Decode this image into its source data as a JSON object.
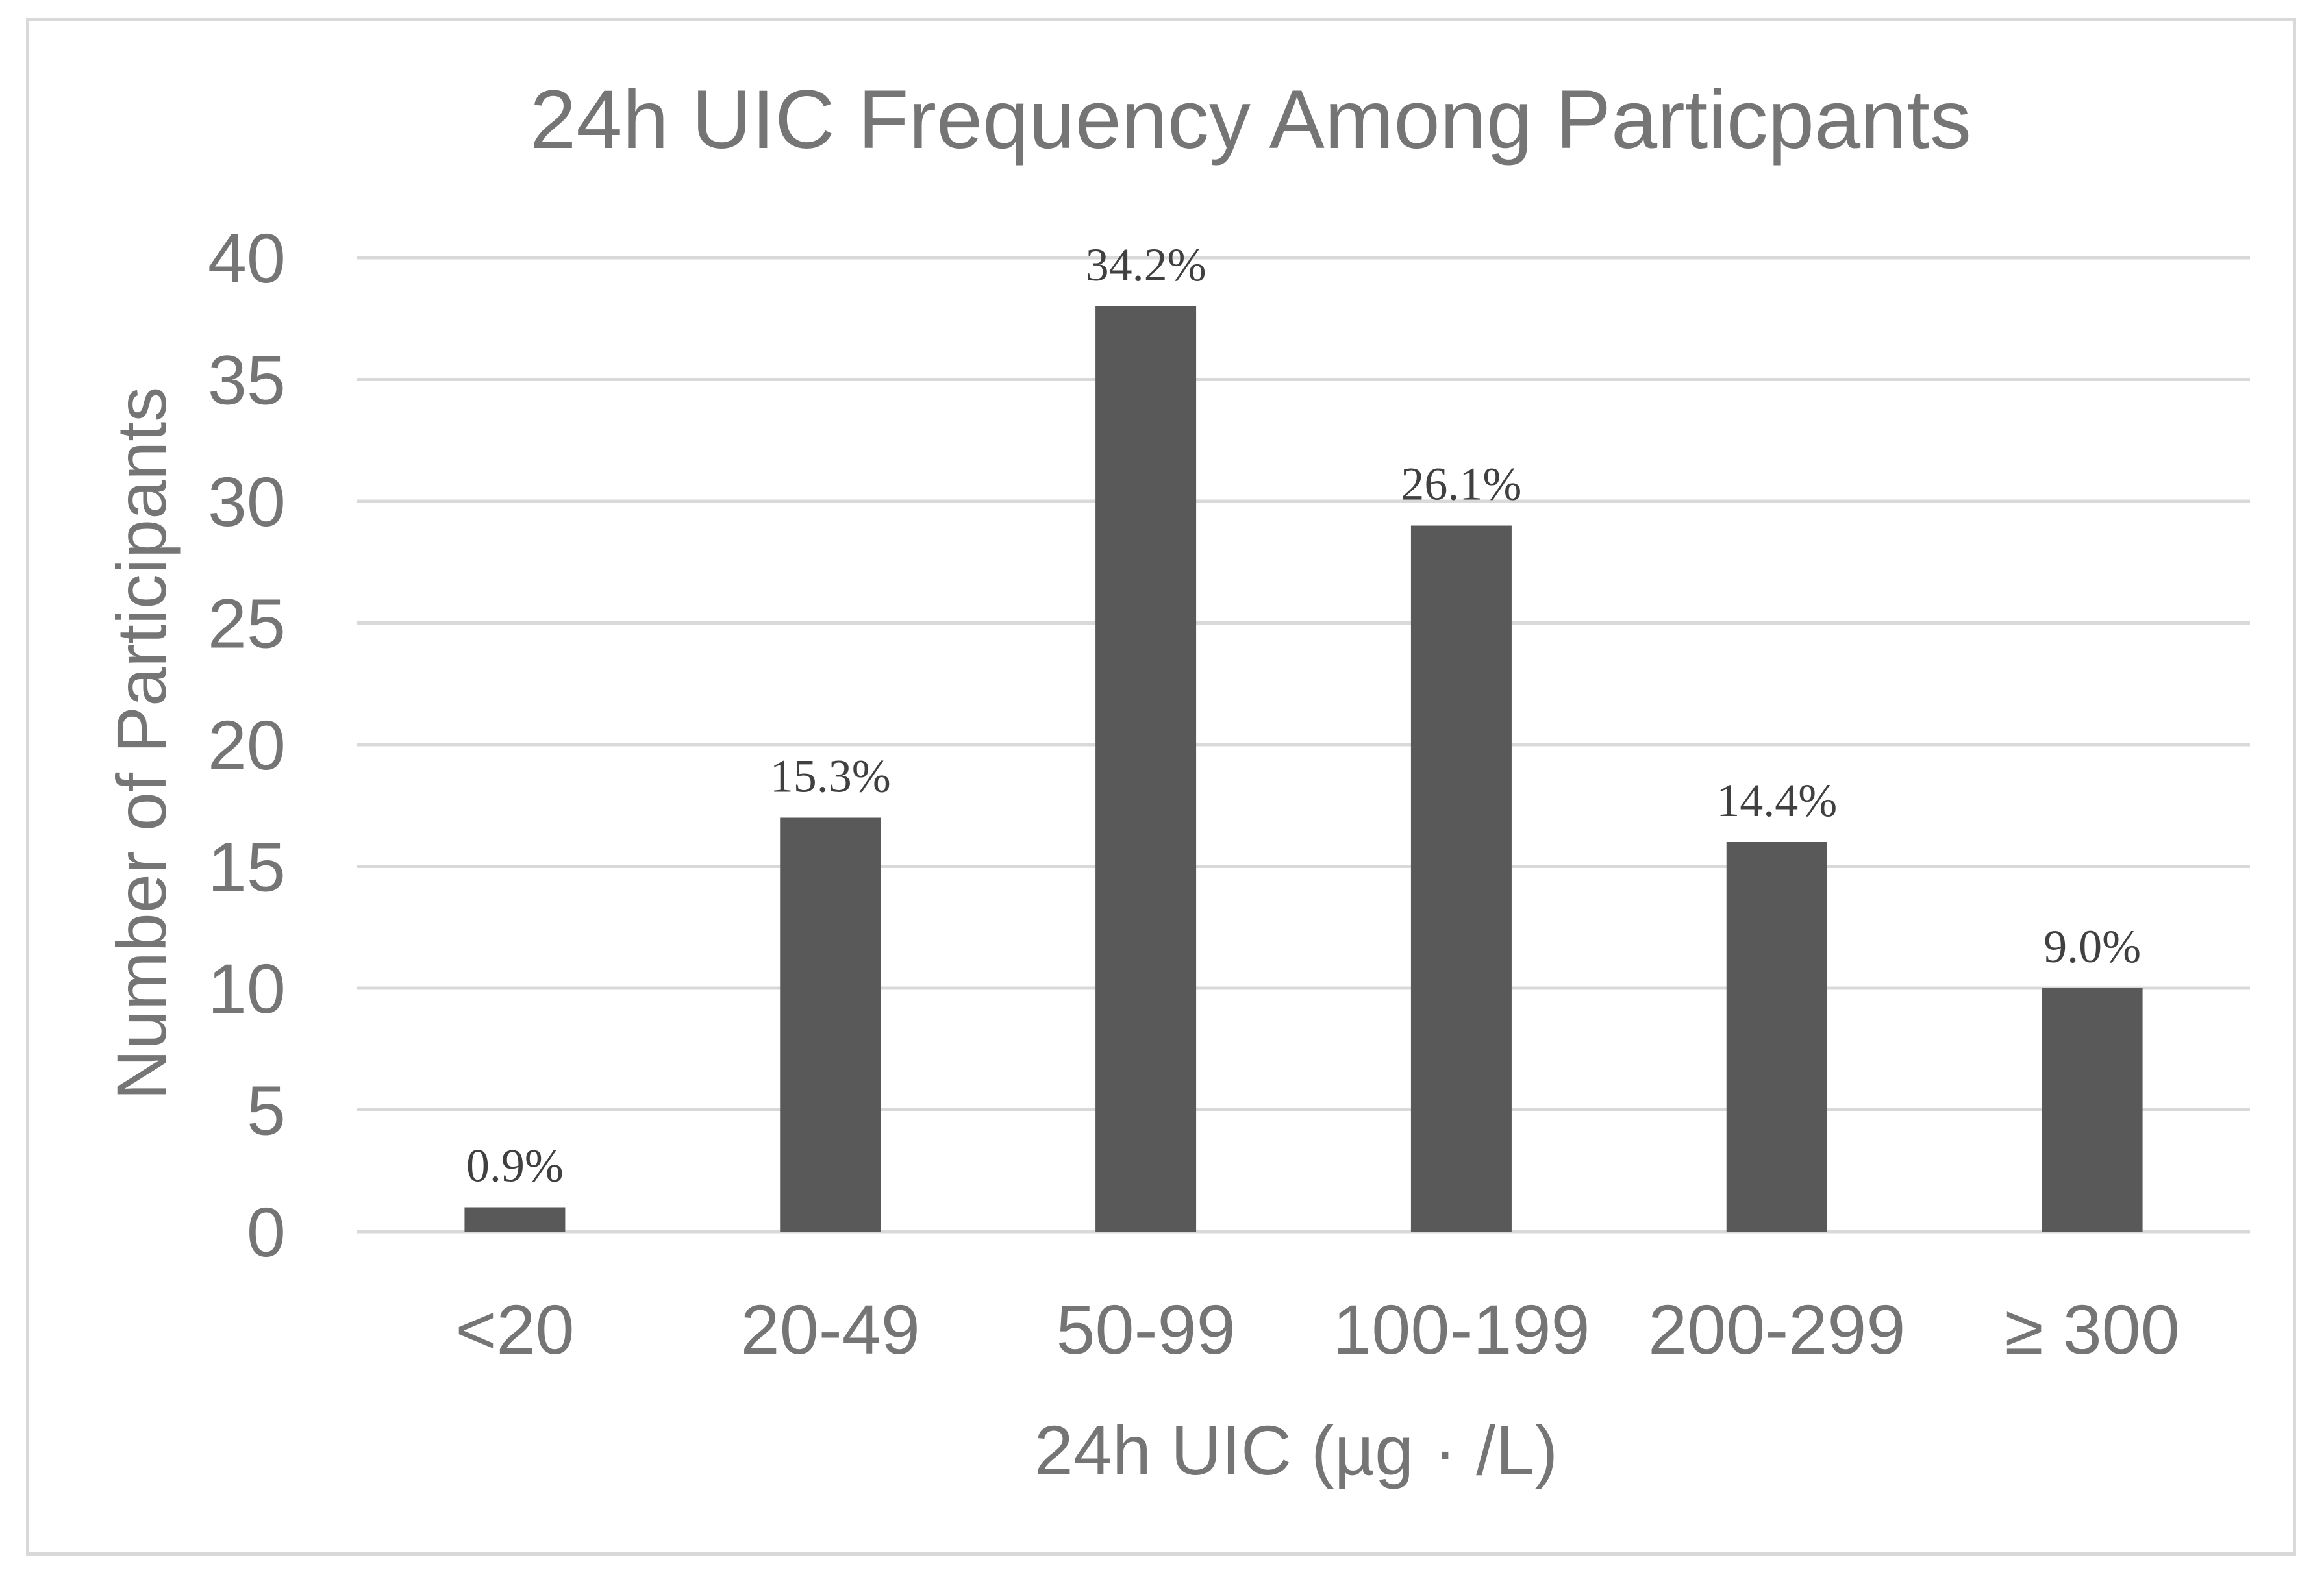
{
  "chart_data": {
    "type": "bar",
    "title": "24h UIC Frequency Among Particpants",
    "xlabel": "24h UIC (µg · /L)",
    "ylabel": "Number of Participants",
    "categories": [
      "<20",
      "20-49",
      "50-99",
      "100-199",
      "200-299",
      "≥ 300"
    ],
    "values": [
      1,
      17,
      38,
      29,
      16,
      10
    ],
    "data_labels": [
      "0.9%",
      "15.3%",
      "34.2%",
      "26.1%",
      "14.4%",
      "9.0%"
    ],
    "ylim": [
      0,
      40
    ],
    "yticks": [
      0,
      5,
      10,
      15,
      20,
      25,
      30,
      35,
      40
    ],
    "grid": true,
    "legend": "none",
    "colors": {
      "bar": "#595959",
      "text": "#757575",
      "data_label": "#404040",
      "grid": "#d9d9d9",
      "frame": "#d9d9d9"
    }
  }
}
